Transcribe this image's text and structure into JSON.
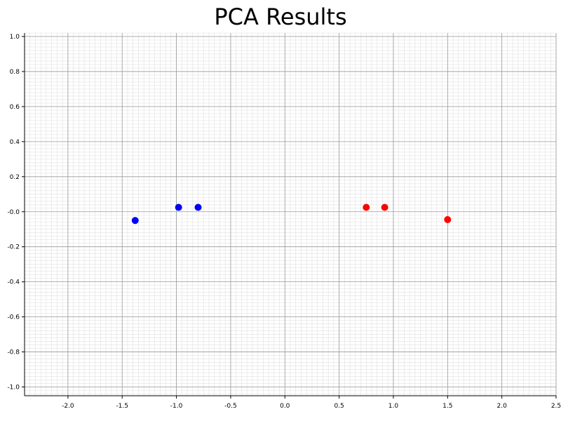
{
  "chart_data": {
    "type": "scatter",
    "title": "PCA Results",
    "xlabel": "",
    "ylabel": "",
    "xlim": [
      -2.4,
      2.5
    ],
    "ylim": [
      -1.05,
      1.02
    ],
    "grid": true,
    "xticks": [
      -2.0,
      -1.5,
      -1.0,
      -0.5,
      0.0,
      0.5,
      1.0,
      1.5,
      2.0,
      2.5
    ],
    "xtick_labels": [
      "-2.0",
      "-1.5",
      "-1.0",
      "-0.5",
      "0.0",
      "0.5",
      "1.0",
      "1.5",
      "2.0",
      "2.5"
    ],
    "yticks": [
      1.0,
      0.8,
      0.6,
      0.4,
      0.2,
      0.0,
      -0.2,
      -0.4,
      -0.6,
      -0.8,
      -1.0
    ],
    "ytick_labels": [
      "1.0",
      "0.8",
      "0.6",
      "0.4",
      "0.2",
      "-0.0",
      "-0.2",
      "-0.4",
      "-0.6",
      "-0.8",
      "-1.0"
    ],
    "series": [
      {
        "color": "#0000ff",
        "points": [
          {
            "x": -1.38,
            "y": -0.05
          },
          {
            "x": -0.98,
            "y": 0.025
          },
          {
            "x": -0.8,
            "y": 0.025
          }
        ]
      },
      {
        "color": "#ff0000",
        "points": [
          {
            "x": 0.75,
            "y": 0.025
          },
          {
            "x": 0.92,
            "y": 0.025
          },
          {
            "x": 1.5,
            "y": -0.045
          }
        ]
      }
    ]
  }
}
